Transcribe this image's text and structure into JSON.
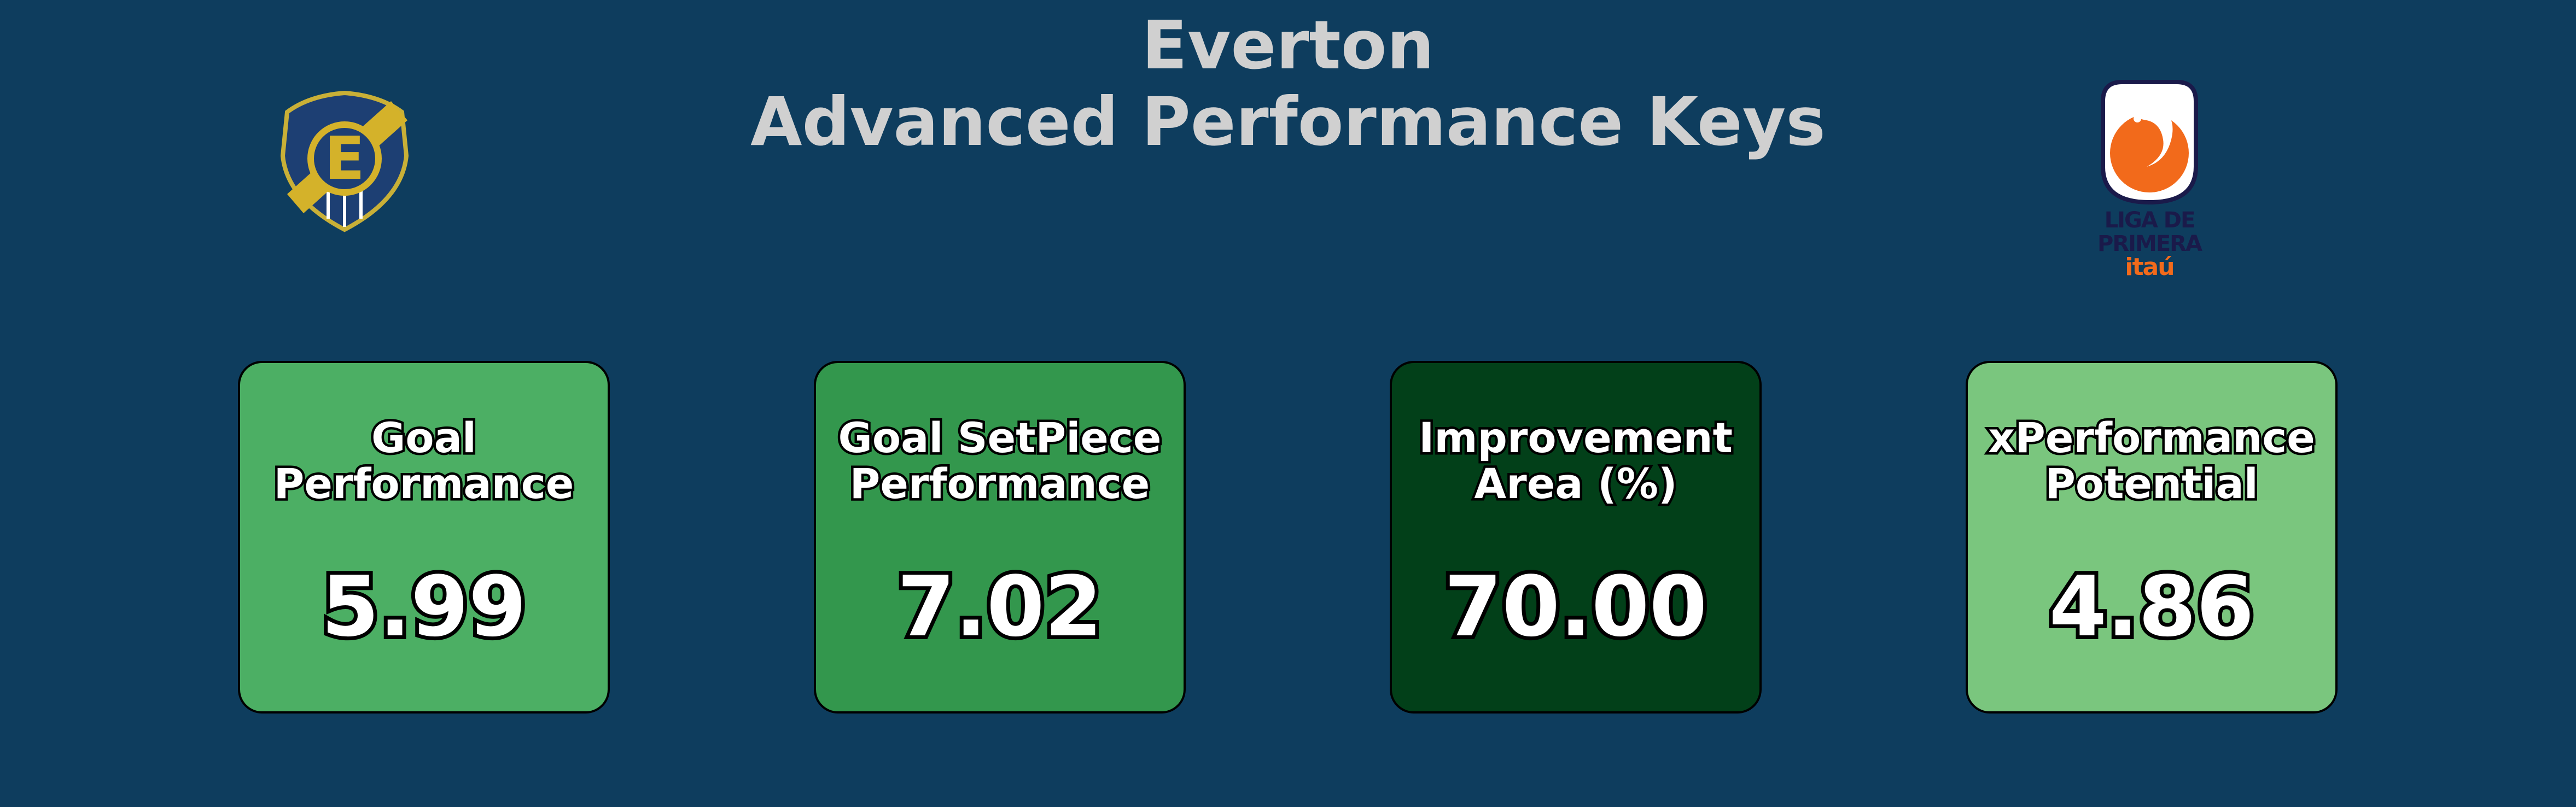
{
  "header": {
    "title_line1": "Everton",
    "title_line2": "Advanced Performance Keys"
  },
  "logos": {
    "left": {
      "icon": "everton-crest-icon",
      "letter": "E"
    },
    "right": {
      "icon": "liga-de-primera-logo-icon",
      "line1": "LIGA DE",
      "line2": "PRIMERA",
      "line3": "itaú"
    }
  },
  "chart_data": {
    "type": "table",
    "cards": [
      {
        "label_line1": "Goal",
        "label_line2": "Performance",
        "value": "5.99",
        "color": "#4caf64"
      },
      {
        "label_line1": "Goal SetPiece",
        "label_line2": "Performance",
        "value": "7.02",
        "color": "#33974d"
      },
      {
        "label_line1": "Improvement",
        "label_line2": "Area (%)",
        "value": "70.00",
        "color": "#024019"
      },
      {
        "label_line1": "xPerformance",
        "label_line2": "Potential",
        "value": "4.86",
        "color": "#7ac67e"
      }
    ]
  }
}
